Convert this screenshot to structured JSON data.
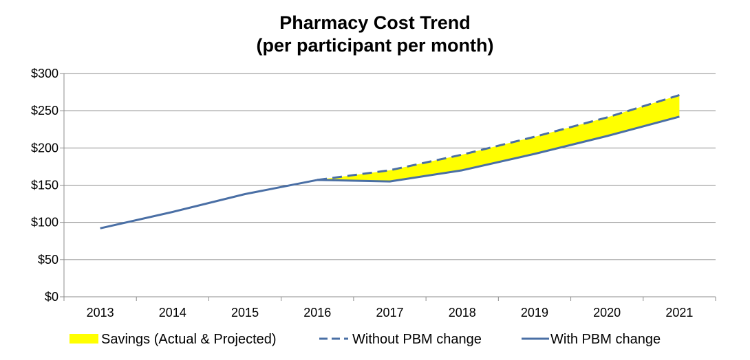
{
  "chart_data": {
    "type": "line",
    "title_line1": "Pharmacy Cost Trend",
    "title_line2": "(per participant per month)",
    "xlabel": "",
    "ylabel": "",
    "categories": [
      "2013",
      "2014",
      "2015",
      "2016",
      "2017",
      "2018",
      "2019",
      "2020",
      "2021"
    ],
    "ylim": [
      0,
      300
    ],
    "yticks": [
      0,
      50,
      100,
      150,
      200,
      250,
      300
    ],
    "ytick_labels": [
      "$0",
      "$50",
      "$100",
      "$150",
      "$200",
      "$250",
      "$300"
    ],
    "grid": true,
    "legend_position": "bottom",
    "series": [
      {
        "name": "Savings (Actual & Projected)",
        "kind": "area-between",
        "between": [
          "Without PBM change",
          "With PBM change"
        ],
        "start_category": "2016",
        "color": "#ffff00"
      },
      {
        "name": "Without PBM change",
        "kind": "dashed-line",
        "color": "#4a6fa5",
        "values": [
          null,
          null,
          null,
          157,
          170,
          191,
          215,
          241,
          271
        ]
      },
      {
        "name": "With PBM change",
        "kind": "line",
        "color": "#4a6fa5",
        "values": [
          92,
          114,
          138,
          157,
          155,
          170,
          192,
          216,
          242
        ]
      }
    ]
  }
}
